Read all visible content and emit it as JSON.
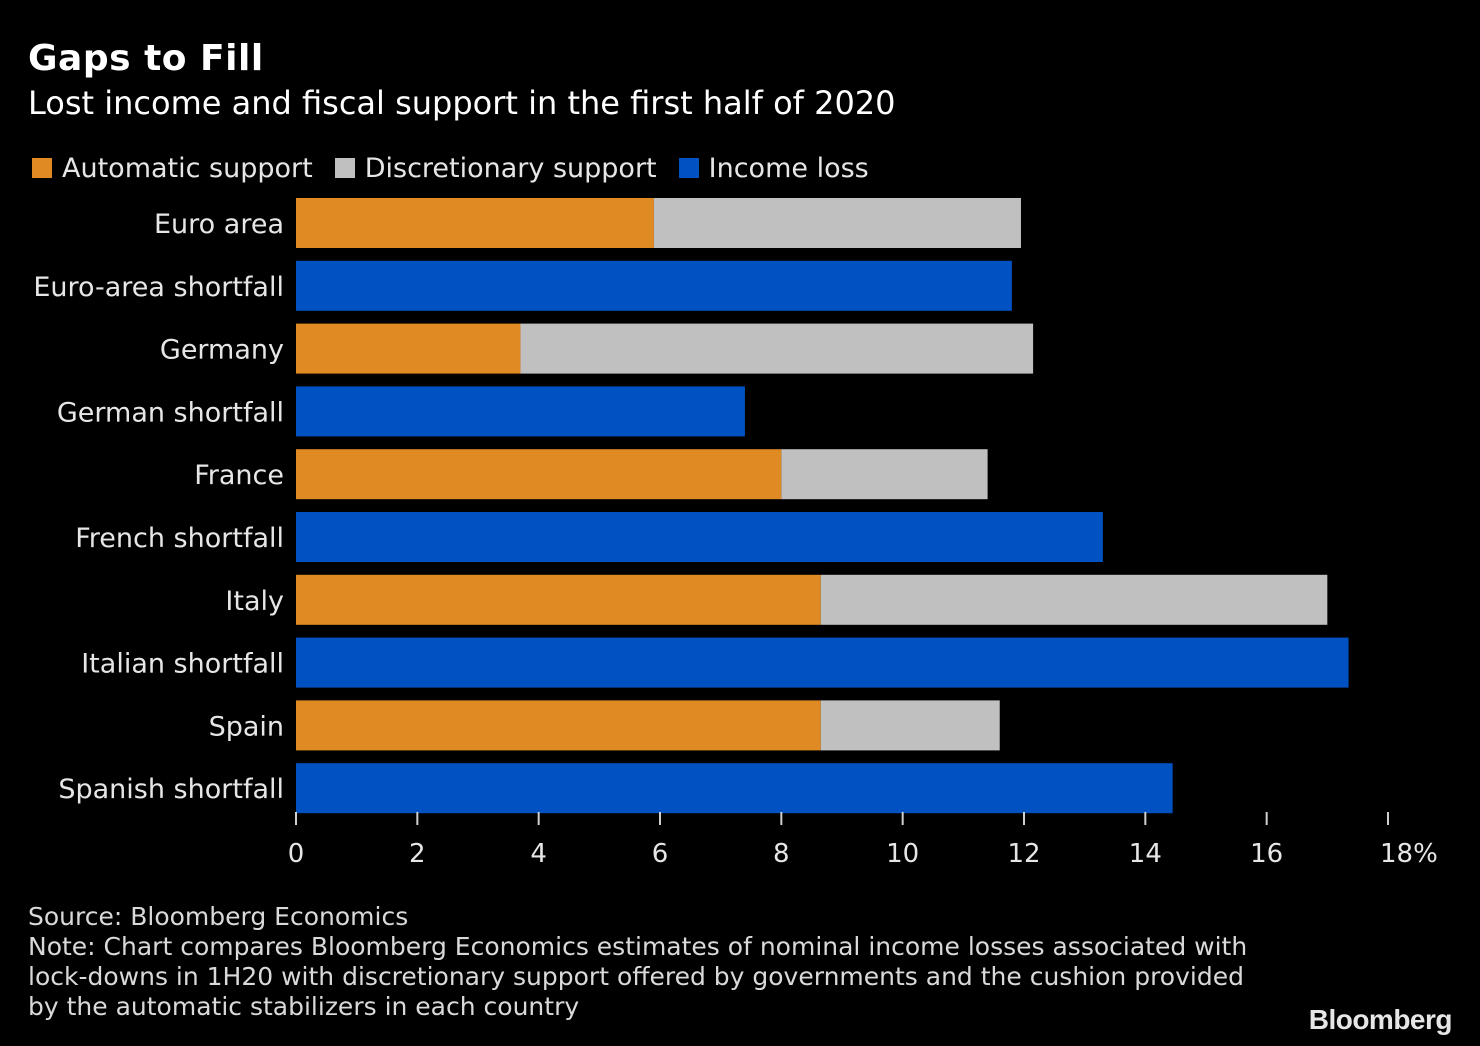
{
  "title": "Gaps to Fill",
  "subtitle": "Lost income and fiscal support in the first half of 2020",
  "legend": [
    {
      "label": "Automatic support",
      "color": "#e08a24"
    },
    {
      "label": "Discretionary support",
      "color": "#c0c0c0"
    },
    {
      "label": "Income loss",
      "color": "#0052c3"
    }
  ],
  "chart_data": {
    "type": "bar",
    "orientation": "horizontal",
    "stacked": true,
    "categories": [
      "Euro area",
      "Euro-area shortfall",
      "Germany",
      "German shortfall",
      "France",
      "French shortfall",
      "Italy",
      "Italian shortfall",
      "Spain",
      "Spanish shortfall"
    ],
    "series": [
      {
        "name": "Automatic support",
        "color": "#e08a24",
        "values": [
          5.9,
          0,
          3.7,
          0,
          8.0,
          0,
          8.65,
          0,
          8.65,
          0
        ]
      },
      {
        "name": "Discretionary support",
        "color": "#c0c0c0",
        "values": [
          6.05,
          0,
          8.45,
          0,
          3.4,
          0,
          8.35,
          0,
          2.95,
          0
        ]
      },
      {
        "name": "Income loss",
        "color": "#0052c3",
        "values": [
          0,
          11.8,
          0,
          7.4,
          0,
          13.3,
          0,
          17.35,
          0,
          14.45
        ]
      }
    ],
    "xlim": [
      0,
      18
    ],
    "xticks": [
      0,
      2,
      4,
      6,
      8,
      10,
      12,
      14,
      16,
      18
    ],
    "xtick_labels": [
      "0",
      "2",
      "4",
      "6",
      "8",
      "10",
      "12",
      "14",
      "16",
      "18%"
    ],
    "grid": false,
    "legend_position": "top-left"
  },
  "source": "Source: Bloomberg Economics",
  "note_lines": [
    "Note: Chart compares Bloomberg Economics estimates of nominal income losses associated with",
    "lock-downs in 1H20 with discretionary support offered by governments and the cushion provided",
    "by the automatic stabilizers in each country"
  ],
  "brand": "Bloomberg"
}
